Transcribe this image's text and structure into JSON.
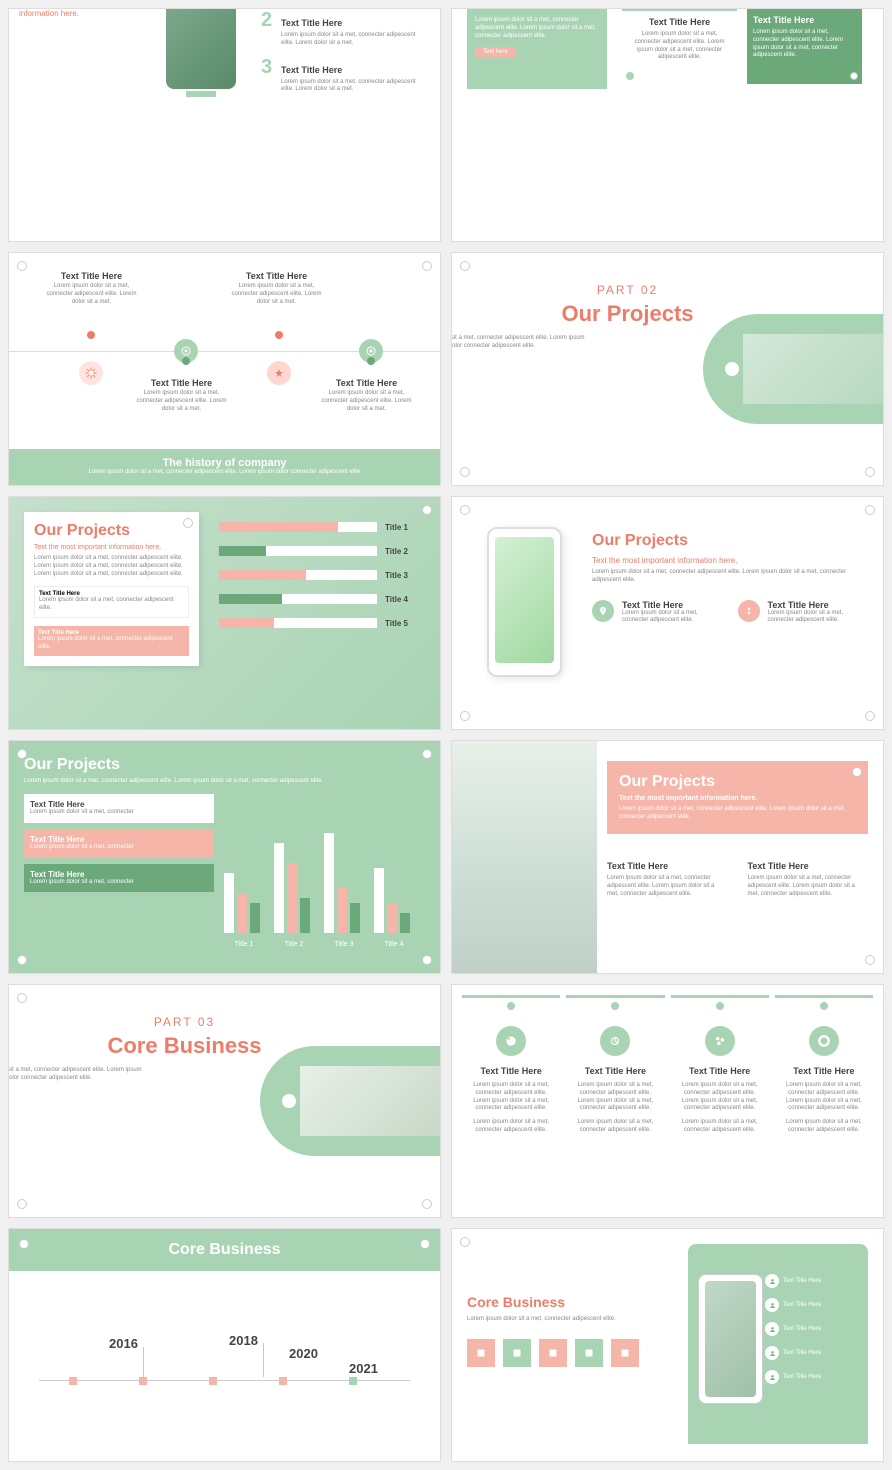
{
  "colors": {
    "accent": "#ed7d6a",
    "green": "#a9d4b4",
    "darkGreen": "#6ba87a",
    "pink": "#f5b5a8",
    "white": "#ffffff",
    "text": "#444444",
    "textLight": "#888888"
  },
  "lorem_short": "Lorem ipsum dolor sit a met, connecter adipescent elite.",
  "lorem_med": "Lorem ipsum dolor sit a met, connecter adipescent elite. Lorem ipsum dolor sit a met, connecter adipescent elite.",
  "text_title": "Text Title Here",
  "s1": {
    "info": "information here.",
    "items": [
      {
        "num": "2",
        "title": "Text Title Here",
        "desc": "Lorem ipsum dolor sit a met, connecter adipescent elite. Lorem dolor sit a met."
      },
      {
        "num": "3",
        "title": "Text Title Here",
        "desc": "Lorem ipsum dolor sit a met, connecter adipescent elite. Lorem dolor sit a met."
      }
    ]
  },
  "s2": {
    "left_desc": "Lorem ipsum dolor sit a met, connecter adipescent elite. Lorem ipsum dolor sit a met, connecter adipescent elite.",
    "btn": "Text here",
    "box1": {
      "title": "Text Title Here",
      "desc": "Lorem ipsum dolor sit a met, connecter adipescent elite. Lorem ipsum dolor sit a met, connecter adipescent elite."
    },
    "box2": {
      "title": "Text Title Here",
      "desc": "Lorem ipsum dolor sit a met, connecter adipescent elite. Lorem ipsum dolor sit a met, connecter adipescent elite."
    }
  },
  "s3": {
    "items": [
      {
        "title": "Text Title Here",
        "desc": "Lorem ipsum dolor sit a met, connecter adipescent elite. Lorem dolor sit a met."
      },
      {
        "title": "Text Title Here",
        "desc": "Lorem ipsum dolor sit a met, connecter adipescent elite. Lorem dolor sit a met."
      },
      {
        "title": "Text Title Here",
        "desc": "Lorem ipsum dolor sit a met, connecter adipescent elite. Lorem dolor sit a met."
      },
      {
        "title": "Text Title Here",
        "desc": "Lorem ipsum dolor sit a met, connecter adipescent elite. Lorem dolor sit a met."
      }
    ],
    "footer_title": "The history of company",
    "footer_desc": "Lorem ipsum dolor sit a met, connecter adipescent elite. Lorem ipsum dolor connecter adipescent elite"
  },
  "s4": {
    "part": "PART 02",
    "title": "Our Projects",
    "desc": "Lorem ipsum dolor sit a met, connecter adipescent elite. Lorem ipsum dolor connecter adipescent elite."
  },
  "s5": {
    "title": "Our Projects",
    "subtitle": "Text the most important information here.",
    "desc": "Lorem ipsum dolor sit a met, connecter adipescent elite. Lorem ipsum dolor sit a met, connecter adipescent elite. Lorem ipsum dolor sit a met, connecter adipescent elite.",
    "box1": {
      "title": "Text Title Here",
      "desc": "Lorem ipsum dolor sit a met, connecter adipescent elite."
    },
    "box2": {
      "title": "Text Title Here",
      "desc": "Lorem ipsum dolor sit a met, connecter adipescent elite."
    },
    "bars": [
      {
        "label": "Title 1",
        "value": 75,
        "color": "#f5b5a8"
      },
      {
        "label": "Title 2",
        "value": 30,
        "color": "#6ba87a"
      },
      {
        "label": "Title 3",
        "value": 55,
        "color": "#f5b5a8"
      },
      {
        "label": "Title 4",
        "value": 40,
        "color": "#6ba87a"
      },
      {
        "label": "Title 5",
        "value": 35,
        "color": "#f5b5a8"
      }
    ]
  },
  "s6": {
    "title": "Our Projects",
    "subtitle": "Text the most important information here.",
    "desc": "Lorem ipsum dolor sit a met, connecter adipescent elite. Lorem ipsum dolor sit a met, connecter adipescent elite.",
    "cols": [
      {
        "title": "Text Title Here",
        "desc": "Lorem ipsum dolor sit a met, connecter adipescent elite.",
        "color": "#a9d4b4"
      },
      {
        "title": "Text Title Here",
        "desc": "Lorem ipsum dolor sit a met, connecter adipescent elite.",
        "color": "#f5b5a8"
      }
    ]
  },
  "s7": {
    "title": "Our Projects",
    "desc": "Lorem ipsum dolor sit a met, connecter adipescent elite. Lorem ipsum dolor sit a met, connecter adipescent elite.",
    "boxes": [
      {
        "title": "Text Title Here",
        "desc": "Lorem ipsum dolor sit a met, connecter"
      },
      {
        "title": "Text Title Here",
        "desc": "Lorem ipsum dolor sit a met, connecter"
      },
      {
        "title": "Text Title Here",
        "desc": "Lorem ipsum dolor sit a met, connecter"
      }
    ],
    "chart": {
      "labels": [
        "Title 1",
        "Title 2",
        "Title 3",
        "Title 4"
      ],
      "series_colors": [
        "#ffffff",
        "#f5b5a8",
        "#6ba87a"
      ],
      "groups": [
        [
          60,
          40,
          30
        ],
        [
          90,
          70,
          35
        ],
        [
          100,
          45,
          30
        ],
        [
          65,
          30,
          20
        ]
      ]
    }
  },
  "s8": {
    "title": "Our Projects",
    "subtitle": "Text the most important information here.",
    "desc": "Lorem ipsum dolor sit a met, connecter adipescent elite. Lorem ipsum dolor sit a met, connecter adipescent elite.",
    "cols": [
      {
        "title": "Text Title Here",
        "desc": "Lorem ipsum dolor sit a met, connecter adipescent elite. Lorem ipsum dolor sit a met, connecter adipescent elite."
      },
      {
        "title": "Text Title Here",
        "desc": "Lorem ipsum dolor sit a met, connecter adipescent elite. Lorem ipsum dolor sit a met, connecter adipescent elite."
      }
    ]
  },
  "s9": {
    "part": "PART 03",
    "title": "Core Business",
    "desc": "Lorem ipsum dolor sit a met, connecter adipescent elite. Lorem ipsum dolor connecter adipescent elite."
  },
  "s10": {
    "cards": [
      {
        "title": "Text Title Here",
        "desc": "Lorem ipsum dolor sit a met, connecter adipescent elite. Lorem ipsum dolor sit a met, connecter adipescent elite.",
        "desc2": "Lorem ipsum dolor sit a met, connecter adipescent elite."
      },
      {
        "title": "Text Title Here",
        "desc": "Lorem ipsum dolor sit a met, connecter adipescent elite. Lorem ipsum dolor sit a met, connecter adipescent elite.",
        "desc2": "Lorem ipsum dolor sit a met, connecter adipescent elite."
      },
      {
        "title": "Text Title Here",
        "desc": "Lorem ipsum dolor sit a met, connecter adipescent elite. Lorem ipsum dolor sit a met, connecter adipescent elite.",
        "desc2": "Lorem ipsum dolor sit a met, connecter adipescent elite."
      },
      {
        "title": "Text Title Here",
        "desc": "Lorem ipsum dolor sit a met, connecter adipescent elite. Lorem ipsum dolor sit a met, connecter adipescent elite.",
        "desc2": "Lorem ipsum dolor sit a met, connecter adipescent elite."
      }
    ]
  },
  "s11": {
    "title": "Core Business",
    "years": [
      "2016",
      "2018",
      "2020",
      "2021"
    ]
  },
  "s12": {
    "title": "Core Business",
    "desc": "Lorem ipsum dolor sit a met, connecter adipescent elite.",
    "icon_colors": [
      "#f5b5a8",
      "#a9d4b4",
      "#f5b5a8",
      "#a9d4b4",
      "#f5b5a8"
    ],
    "list": [
      "Text Title Here",
      "Text Title Here",
      "Text Title Here",
      "Text Title Here",
      "Text Title Here"
    ]
  }
}
